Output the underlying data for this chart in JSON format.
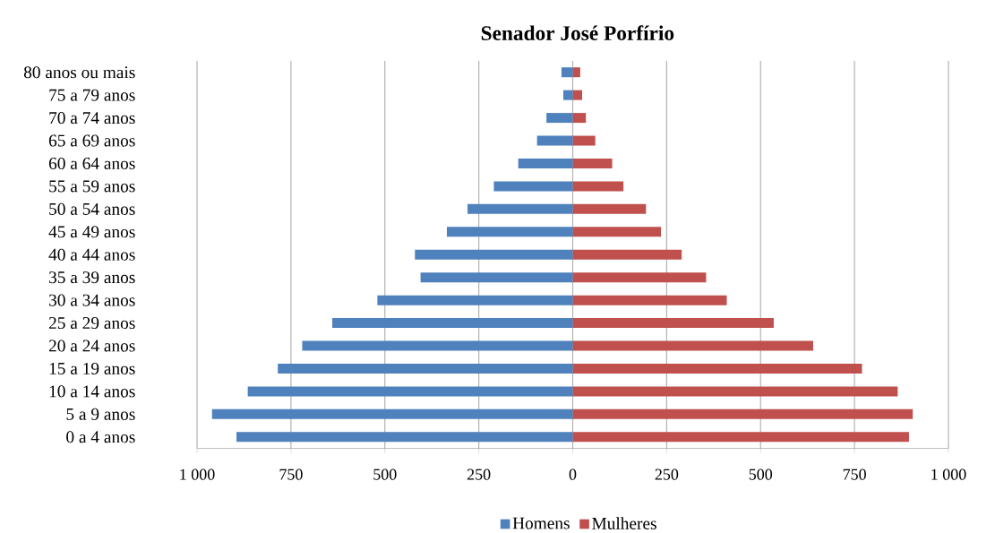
{
  "chart_data": {
    "type": "bar",
    "orientation": "horizontal",
    "stacked": true,
    "title": "Senador José Porfírio",
    "categories": [
      "80 anos ou mais",
      "75 a 79 anos",
      "70 a 74 anos",
      "65 a 69 anos",
      "60 a 64 anos",
      "55 a 59 anos",
      "50 a 54 anos",
      "45 a 49 anos",
      "40 a 44 anos",
      "35 a 39 anos",
      "30 a 34 anos",
      "25 a 29 anos",
      "20 a 24 anos",
      "15 a 19 anos",
      "10 a 14 anos",
      "5 a 9 anos",
      "0 a 4 anos"
    ],
    "series": [
      {
        "name": "Homens",
        "color": "#4f81bd",
        "values": [
          -30,
          -25,
          -70,
          -95,
          -145,
          -210,
          -280,
          -335,
          -420,
          -405,
          -520,
          -640,
          -720,
          -785,
          -865,
          -960,
          -895
        ]
      },
      {
        "name": "Mulheres",
        "color": "#c0504d",
        "values": [
          20,
          25,
          35,
          60,
          105,
          135,
          195,
          235,
          290,
          355,
          410,
          535,
          640,
          770,
          865,
          905,
          895
        ]
      }
    ],
    "xlim": [
      -1000,
      1000
    ],
    "xticks": [
      {
        "value": -1000,
        "label": "1 000"
      },
      {
        "value": -750,
        "label": "750"
      },
      {
        "value": -500,
        "label": "500"
      },
      {
        "value": -250,
        "label": "250"
      },
      0,
      250,
      500,
      750,
      {
        "value": 1000,
        "label": "1 000"
      }
    ],
    "grid": "x",
    "legend": "bottom"
  }
}
